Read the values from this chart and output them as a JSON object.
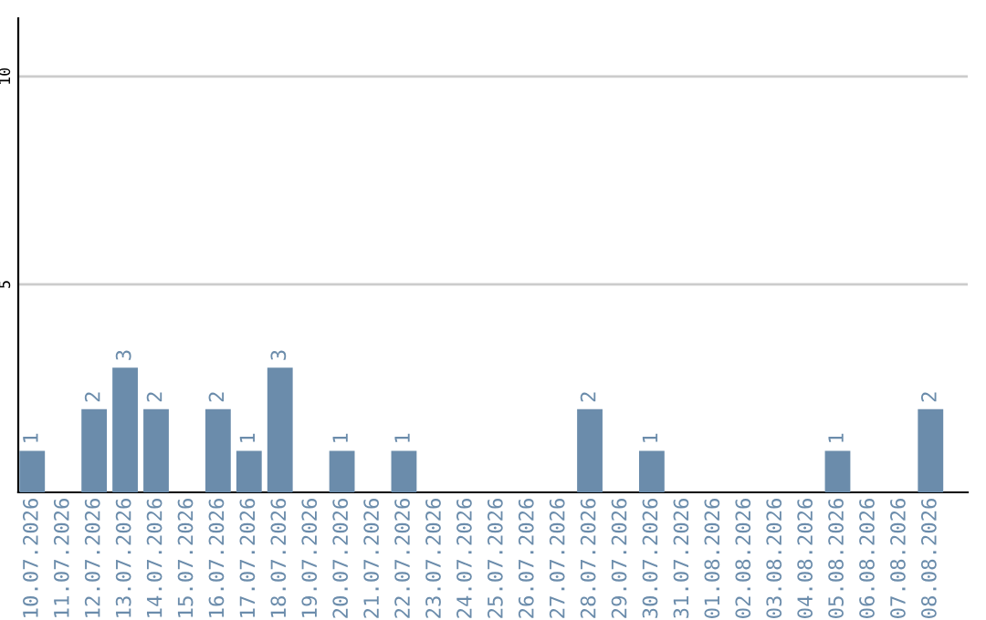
{
  "chart_data": {
    "type": "bar",
    "categories": [
      "10.07.2026",
      "11.07.2026",
      "12.07.2026",
      "13.07.2026",
      "14.07.2026",
      "15.07.2026",
      "16.07.2026",
      "17.07.2026",
      "18.07.2026",
      "19.07.2026",
      "20.07.2026",
      "21.07.2026",
      "22.07.2026",
      "23.07.2026",
      "24.07.2026",
      "25.07.2026",
      "26.07.2026",
      "27.07.2026",
      "28.07.2026",
      "29.07.2026",
      "30.07.2026",
      "31.07.2026",
      "01.08.2026",
      "02.08.2026",
      "03.08.2026",
      "04.08.2026",
      "05.08.2026",
      "06.08.2026",
      "07.08.2026",
      "08.08.2026"
    ],
    "values": [
      1,
      0,
      2,
      3,
      2,
      0,
      2,
      1,
      3,
      0,
      1,
      0,
      1,
      0,
      0,
      0,
      0,
      0,
      2,
      0,
      1,
      0,
      0,
      0,
      0,
      0,
      1,
      0,
      0,
      2
    ],
    "value_labels": [
      "1",
      null,
      "2",
      "3",
      "2",
      null,
      "2",
      "1",
      "3",
      null,
      "1",
      null,
      "1",
      null,
      null,
      null,
      null,
      null,
      "2",
      null,
      "1",
      null,
      null,
      null,
      null,
      null,
      "1",
      null,
      null,
      "2"
    ],
    "color": "#6b8cab",
    "ylim": [
      0,
      11.4
    ],
    "yticks": [
      5,
      10
    ],
    "grid": "y",
    "legend": false
  }
}
